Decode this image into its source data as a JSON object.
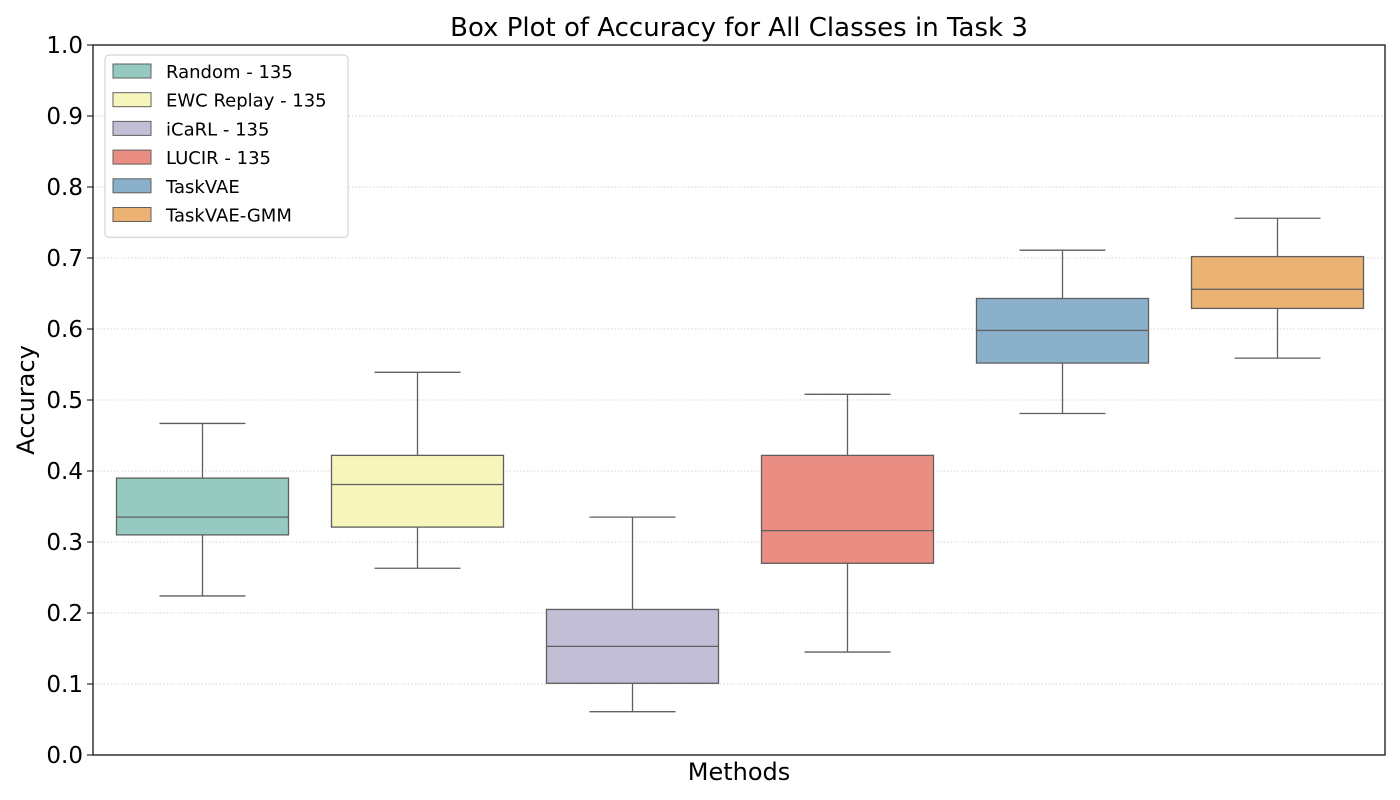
{
  "chart_data": {
    "type": "box",
    "title": "Box Plot of Accuracy for All Classes in Task 3",
    "xlabel": "Methods",
    "ylabel": "Accuracy",
    "ylim": [
      0.0,
      1.0
    ],
    "yticks": [
      "0.0",
      "0.1",
      "0.2",
      "0.3",
      "0.4",
      "0.5",
      "0.6",
      "0.7",
      "0.8",
      "0.9",
      "1.0"
    ],
    "grid": "y, dotted",
    "legend_position": "top-left",
    "series": [
      {
        "name": "Random - 135",
        "color": "#96cac1",
        "whisker_low": 0.224,
        "q1": 0.31,
        "median": 0.335,
        "q3": 0.39,
        "whisker_high": 0.467
      },
      {
        "name": "EWC Replay - 135",
        "color": "#f6f6bc",
        "whisker_low": 0.263,
        "q1": 0.321,
        "median": 0.381,
        "q3": 0.422,
        "whisker_high": 0.539
      },
      {
        "name": "iCaRL - 135",
        "color": "#c1bed6",
        "whisker_low": 0.061,
        "q1": 0.101,
        "median": 0.153,
        "q3": 0.205,
        "whisker_high": 0.335
      },
      {
        "name": "LUCIR - 135",
        "color": "#ea8e83",
        "whisker_low": 0.145,
        "q1": 0.27,
        "median": 0.316,
        "q3": 0.422,
        "whisker_high": 0.508
      },
      {
        "name": "TaskVAE",
        "color": "#8ab0cb",
        "whisker_low": 0.481,
        "q1": 0.552,
        "median": 0.598,
        "q3": 0.643,
        "whisker_high": 0.711
      },
      {
        "name": "TaskVAE-GMM",
        "color": "#ecb273",
        "whisker_low": 0.559,
        "q1": 0.629,
        "median": 0.656,
        "q3": 0.702,
        "whisker_high": 0.756
      }
    ]
  }
}
